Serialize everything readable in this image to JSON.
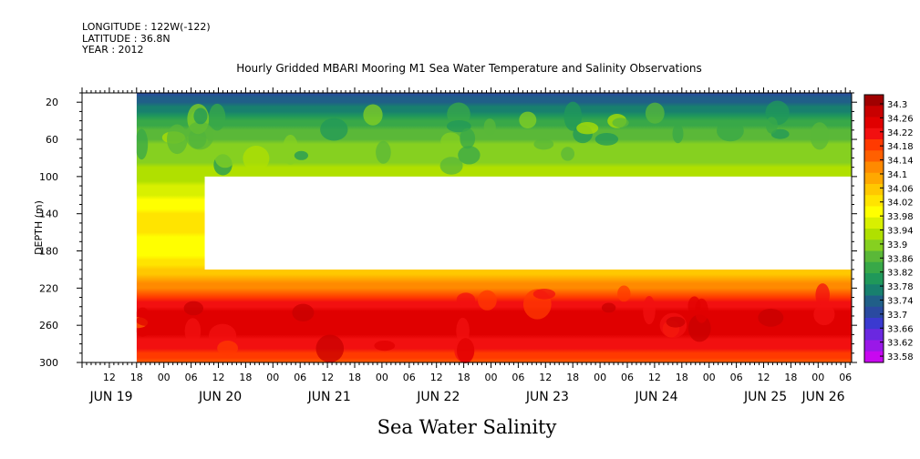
{
  "header": {
    "longitude": "LONGITUDE : 122W(-122)",
    "latitude": "LATITUDE : 36.8N",
    "year": "YEAR : 2012"
  },
  "chart_data": {
    "type": "heatmap",
    "title": "Hourly Gridded MBARI Mooring M1 Sea Water Temperature and Salinity Observations",
    "xlabel": "Sea Water Salinity",
    "ylabel": "DEPTH (m)",
    "y_ticks": [
      20,
      60,
      100,
      140,
      180,
      220,
      260,
      300
    ],
    "ylim": [
      300,
      10
    ],
    "x_hour_ticks": [
      "12",
      "18",
      "00",
      "06",
      "12",
      "18",
      "00",
      "06",
      "12",
      "18",
      "00",
      "06",
      "12",
      "18",
      "00",
      "06",
      "12",
      "18",
      "00",
      "06",
      "12",
      "18",
      "00",
      "06",
      "12",
      "18",
      "00",
      "06"
    ],
    "x_date_labels": [
      "JUN 19",
      "JUN 20",
      "JUN 21",
      "JUN 22",
      "JUN 23",
      "JUN 24",
      "JUN 25",
      "JUN 26"
    ],
    "colorbar_levels": [
      "34.3",
      "34.26",
      "34.22",
      "34.18",
      "34.14",
      "34.1",
      "34.06",
      "34.02",
      "33.98",
      "33.94",
      "33.9",
      "33.86",
      "33.82",
      "33.78",
      "33.74",
      "33.7",
      "33.66",
      "33.62",
      "33.58"
    ],
    "colorbar_colors": [
      "#a00000",
      "#c80000",
      "#e00000",
      "#f21010",
      "#ff3a00",
      "#ff6000",
      "#ff8a00",
      "#ffa800",
      "#ffc800",
      "#ffe400",
      "#ffff00",
      "#d8f000",
      "#b0e000",
      "#86d020",
      "#5ab838",
      "#38a848",
      "#20985a",
      "#18806e",
      "#205f88",
      "#2a4aa0",
      "#3a3ad0",
      "#6a28e0",
      "#9a18e8",
      "#c808f0"
    ],
    "profile": [
      {
        "depth": 10,
        "salinity": 33.7
      },
      {
        "depth": 30,
        "salinity": 33.78
      },
      {
        "depth": 50,
        "salinity": 33.85
      },
      {
        "depth": 70,
        "salinity": 33.89
      },
      {
        "depth": 95,
        "salinity": 33.92
      },
      {
        "depth": 120,
        "salinity": 33.97
      },
      {
        "depth": 150,
        "salinity": 34.02
      },
      {
        "depth": 180,
        "salinity": 33.98
      },
      {
        "depth": 200,
        "salinity": 34.04
      },
      {
        "depth": 215,
        "salinity": 34.1
      },
      {
        "depth": 235,
        "salinity": 34.2
      },
      {
        "depth": 255,
        "salinity": 34.25
      },
      {
        "depth": 275,
        "salinity": 34.22
      },
      {
        "depth": 300,
        "salinity": 34.16
      }
    ],
    "data_start": "JUN 19 18",
    "missing_region": {
      "start": "JUN 20 09",
      "end": "end",
      "depth_top": 100,
      "depth_bottom": 200
    }
  }
}
